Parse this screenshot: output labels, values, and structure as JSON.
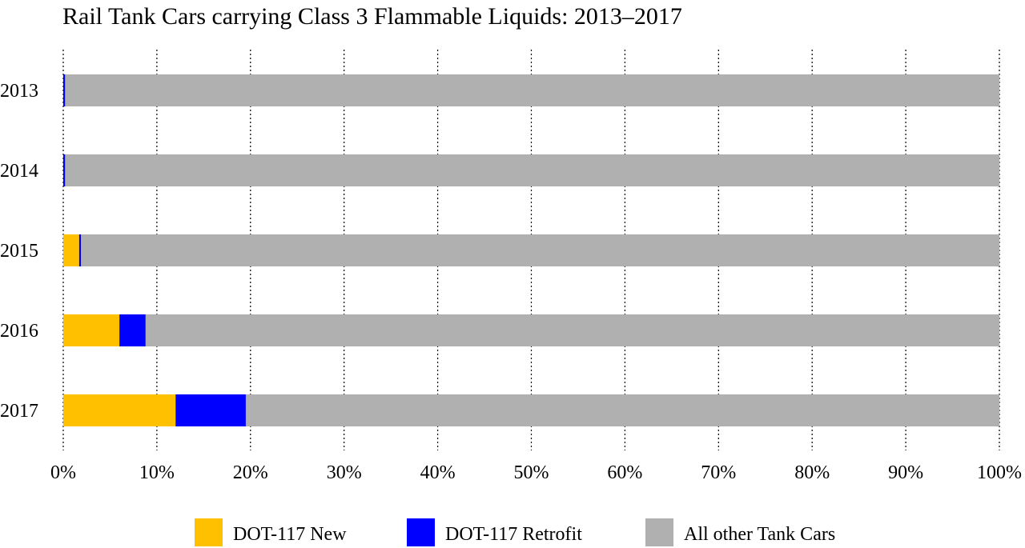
{
  "chart_data": {
    "type": "bar",
    "orientation": "horizontal",
    "stacked": true,
    "title": "Rail Tank Cars carrying Class 3 Flammable Liquids: 2013–2017",
    "categories": [
      "2013",
      "2014",
      "2015",
      "2016",
      "2017"
    ],
    "series": [
      {
        "name": "DOT-117 New",
        "color": "#FFC000",
        "values": [
          0,
          0,
          1.7,
          6.0,
          12.0
        ]
      },
      {
        "name": "DOT-117 Retrofit",
        "color": "#0000FF",
        "values": [
          0.2,
          0.2,
          0.2,
          2.8,
          7.5
        ]
      },
      {
        "name": "All other Tank Cars",
        "color": "#B0B0B0",
        "values": [
          99.8,
          99.8,
          98.1,
          91.2,
          80.5
        ]
      }
    ],
    "xlim": [
      0,
      100
    ],
    "x_ticks": [
      "0%",
      "10%",
      "20%",
      "30%",
      "40%",
      "50%",
      "60%",
      "70%",
      "80%",
      "90%",
      "100%"
    ],
    "grid": "vertical dotted",
    "legend_position": "bottom"
  }
}
